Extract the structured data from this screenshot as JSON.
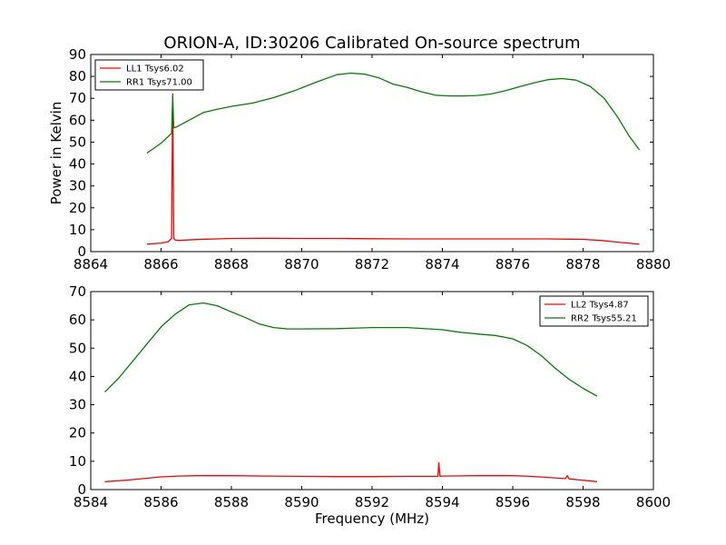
{
  "figure": {
    "title": "ORION-A, ID:30206 Calibrated On-source spectrum"
  },
  "chart_data": [
    {
      "type": "line",
      "title": "ORION-A, ID:30206 Calibrated On-source spectrum",
      "xlabel": "",
      "ylabel": "Power in Kelvin",
      "xlim": [
        8864,
        8880
      ],
      "ylim": [
        0,
        90
      ],
      "xticks": [
        8864,
        8866,
        8868,
        8870,
        8872,
        8874,
        8876,
        8878,
        8880
      ],
      "yticks": [
        0,
        10,
        20,
        30,
        40,
        50,
        60,
        70,
        80,
        90
      ],
      "grid": false,
      "legend_position": "upper-left",
      "series": [
        {
          "name": "LL1 Tsys6.02",
          "color": "#ff0000",
          "x": [
            8865.6,
            8866.0,
            8866.2,
            8866.3,
            8866.33,
            8866.36,
            8866.4,
            8866.5,
            8867.0,
            8868.0,
            8869.0,
            8870.0,
            8871.0,
            8872.0,
            8873.0,
            8874.0,
            8875.0,
            8876.0,
            8877.0,
            8878.0,
            8878.5,
            8879.0,
            8879.6
          ],
          "y": [
            3.4,
            3.9,
            4.5,
            6.0,
            72.0,
            6.0,
            5.3,
            5.1,
            5.5,
            6.0,
            6.1,
            6.0,
            6.0,
            5.9,
            5.8,
            5.8,
            5.8,
            5.8,
            5.8,
            5.6,
            5.1,
            4.3,
            3.4
          ]
        },
        {
          "name": "RR1 Tsys71.00",
          "color": "#008000",
          "x": [
            8865.6,
            8866.0,
            8866.3,
            8866.33,
            8866.36,
            8866.45,
            8866.8,
            8867.2,
            8867.6,
            8868.0,
            8868.6,
            8869.2,
            8869.8,
            8870.4,
            8871.0,
            8871.4,
            8871.8,
            8872.2,
            8872.6,
            8873.0,
            8873.4,
            8873.8,
            8874.2,
            8874.6,
            8875.0,
            8875.4,
            8875.8,
            8876.2,
            8876.6,
            8877.0,
            8877.4,
            8877.8,
            8878.2,
            8878.6,
            8879.0,
            8879.3,
            8879.6
          ],
          "y": [
            45.0,
            49.5,
            54.0,
            71.0,
            56.5,
            57.0,
            60.0,
            63.5,
            65.0,
            66.3,
            67.8,
            70.3,
            73.5,
            77.3,
            80.8,
            81.5,
            81.0,
            79.3,
            76.5,
            75.0,
            73.0,
            71.4,
            71.1,
            71.1,
            71.3,
            72.0,
            73.5,
            75.3,
            77.0,
            78.5,
            79.0,
            78.3,
            75.5,
            70.0,
            61.0,
            53.0,
            46.5
          ]
        }
      ]
    },
    {
      "type": "line",
      "title": "",
      "xlabel": "Frequency (MHz)",
      "ylabel": "",
      "xlim": [
        8584,
        8600
      ],
      "ylim": [
        0,
        70
      ],
      "xticks": [
        8584,
        8586,
        8588,
        8590,
        8592,
        8594,
        8596,
        8598,
        8600
      ],
      "yticks": [
        0,
        10,
        20,
        30,
        40,
        50,
        60,
        70
      ],
      "grid": false,
      "legend_position": "upper-right",
      "series": [
        {
          "name": "LL2 Tsys4.87",
          "color": "#ff0000",
          "x": [
            8584.4,
            8585.0,
            8585.5,
            8586.0,
            8586.5,
            8587.0,
            8588.0,
            8589.0,
            8590.0,
            8591.0,
            8592.0,
            8593.0,
            8593.87,
            8593.9,
            8593.93,
            8594.0,
            8595.0,
            8596.0,
            8596.5,
            8597.0,
            8597.5,
            8597.55,
            8597.6,
            8598.0,
            8598.4
          ],
          "y": [
            2.8,
            3.3,
            3.9,
            4.5,
            4.8,
            4.9,
            4.9,
            4.8,
            4.7,
            4.6,
            4.6,
            4.7,
            4.7,
            9.5,
            4.7,
            4.8,
            4.9,
            4.9,
            4.7,
            4.3,
            3.9,
            4.9,
            3.8,
            3.3,
            2.8
          ]
        },
        {
          "name": "RR2 Tsys55.21",
          "color": "#008000",
          "x": [
            8584.4,
            8584.8,
            8585.2,
            8585.6,
            8586.0,
            8586.4,
            8586.8,
            8587.2,
            8587.6,
            8588.0,
            8588.4,
            8588.8,
            8589.2,
            8589.6,
            8590.0,
            8591.0,
            8592.0,
            8593.0,
            8594.0,
            8594.5,
            8595.0,
            8595.5,
            8596.0,
            8596.4,
            8596.8,
            8597.2,
            8597.6,
            8598.0,
            8598.4
          ],
          "y": [
            34.5,
            39.5,
            45.5,
            51.5,
            57.5,
            62.0,
            65.3,
            66.0,
            65.0,
            62.8,
            60.8,
            58.5,
            57.3,
            56.8,
            56.8,
            56.9,
            57.3,
            57.3,
            56.5,
            55.6,
            55.0,
            54.5,
            53.3,
            51.0,
            47.5,
            43.0,
            39.0,
            35.8,
            33.0
          ]
        }
      ]
    }
  ]
}
